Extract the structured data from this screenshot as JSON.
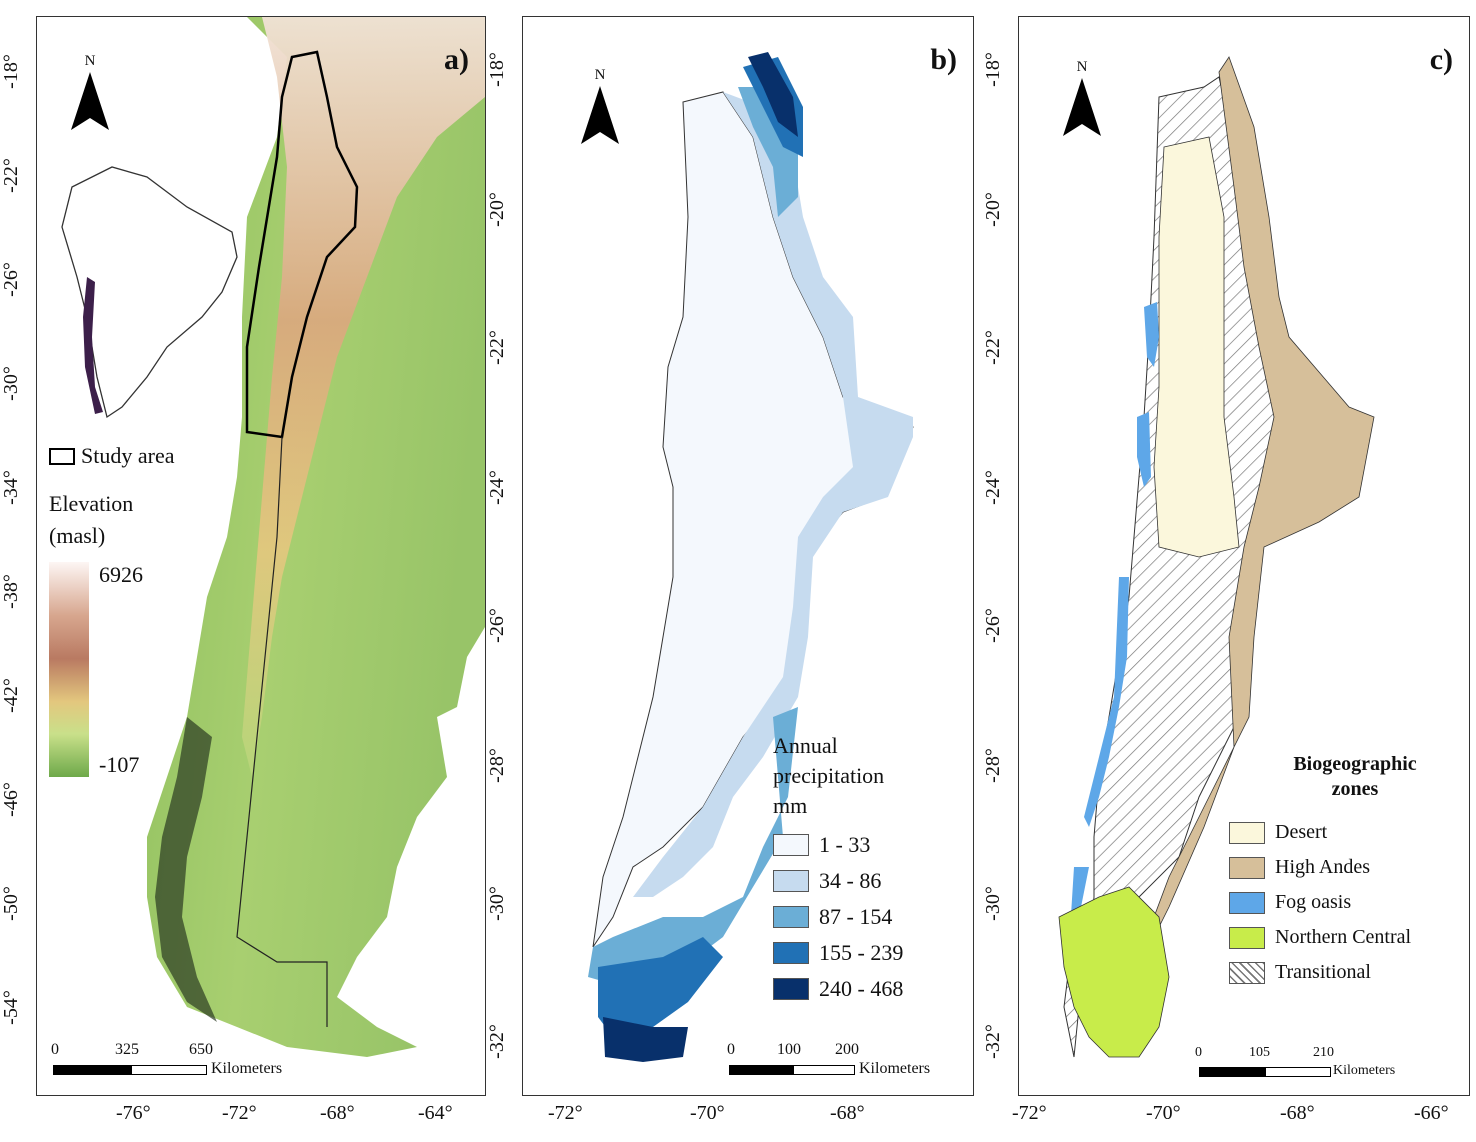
{
  "panels": [
    {
      "label": "a)",
      "north": "N",
      "x_ticks": [
        "-76°",
        "-72°",
        "-68°",
        "-64°"
      ],
      "y_ticks": [
        "-18°",
        "-22°",
        "-26°",
        "-30°",
        "-34°",
        "-38°",
        "-42°",
        "-46°",
        "-50°",
        "-54°"
      ],
      "study_area_label": "Study area",
      "elevation_title_1": "Elevation",
      "elevation_title_2": "(masl)",
      "elevation_max": "6926",
      "elevation_min": "-107",
      "scale_ticks": [
        "0",
        "325",
        "650"
      ],
      "scale_unit": "Kilometers"
    },
    {
      "label": "b)",
      "north": "N",
      "x_ticks": [
        "-72°",
        "-70°",
        "-68°"
      ],
      "y_ticks": [
        "-18°",
        "-20°",
        "-22°",
        "-24°",
        "-26°",
        "-28°",
        "-30°",
        "-32°"
      ],
      "legend_title_1": "Annual",
      "legend_title_2": "precipitation",
      "legend_title_3": "mm",
      "legend": [
        {
          "label": "1 - 33",
          "color": "#f4f8fd"
        },
        {
          "label": "34 - 86",
          "color": "#c6dbef"
        },
        {
          "label": "87 - 154",
          "color": "#6baed6"
        },
        {
          "label": "155 - 239",
          "color": "#2171b5"
        },
        {
          "label": "240 - 468",
          "color": "#08306b"
        }
      ],
      "scale_ticks": [
        "0",
        "100",
        "200"
      ],
      "scale_unit": "Kilometers"
    },
    {
      "label": "c)",
      "north": "N",
      "x_ticks": [
        "-72°",
        "-70°",
        "-68°",
        "-66°"
      ],
      "y_ticks": [
        "-18°",
        "-20°",
        "-22°",
        "-24°",
        "-26°",
        "-28°",
        "-30°",
        "-32°"
      ],
      "legend_title_1": "Biogeographic",
      "legend_title_2": "zones",
      "legend": [
        {
          "label": "Desert",
          "color": "#fbf7dc"
        },
        {
          "label": "High Andes",
          "color": "#d6bf9a"
        },
        {
          "label": "Fog oasis",
          "color": "#5ea7e8"
        },
        {
          "label": "Northern Central",
          "color": "#c8ec4a"
        },
        {
          "label": "Transitional",
          "color": "hatch"
        }
      ],
      "scale_ticks": [
        "0",
        "105",
        "210"
      ],
      "scale_unit": "Kilometers"
    }
  ]
}
